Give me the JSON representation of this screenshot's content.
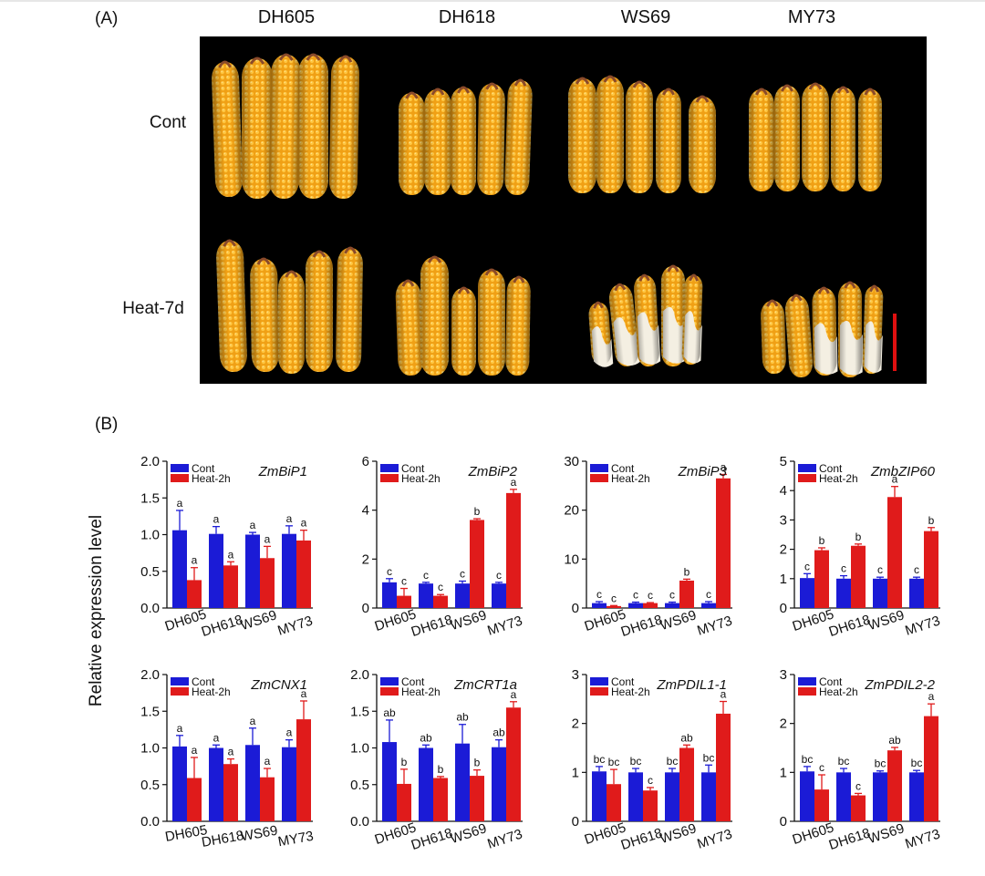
{
  "panel_a": {
    "label": "(A)",
    "columns": [
      "DH605",
      "DH618",
      "WS69",
      "MY73"
    ],
    "rows": [
      "Cont",
      "Heat-7d"
    ],
    "photo_subject": "corn-ears",
    "scale_bar_color": "#e01010"
  },
  "panel_b": {
    "label": "(B)",
    "ylabel": "Relative expression level"
  },
  "colors": {
    "cont": "#1b1bd6",
    "heat": "#e01b1b",
    "kernel": "#f2a51a",
    "kernel_light": "#ffcf4a"
  },
  "chart_data": [
    {
      "type": "bar",
      "title": "ZmBiP1",
      "categories": [
        "DH605",
        "DH618",
        "WS69",
        "MY73"
      ],
      "ylim": [
        0,
        2.0
      ],
      "yticks": [
        "0.0",
        "0.5",
        "1.0",
        "1.5",
        "2.0"
      ],
      "ytick_values": [
        0,
        0.5,
        1.0,
        1.5,
        2.0
      ],
      "tick_rotation": "mixed",
      "legend": [
        "Cont",
        "Heat-2h"
      ],
      "series": [
        {
          "name": "Cont",
          "values": [
            1.06,
            1.01,
            1.0,
            1.01
          ],
          "errors": [
            0.27,
            0.1,
            0.03,
            0.11
          ],
          "letters": [
            "a",
            "a",
            "a",
            "a"
          ]
        },
        {
          "name": "Heat-2h",
          "values": [
            0.38,
            0.58,
            0.68,
            0.92
          ],
          "errors": [
            0.17,
            0.05,
            0.16,
            0.14
          ],
          "letters": [
            "a",
            "a",
            "a",
            "a"
          ]
        }
      ]
    },
    {
      "type": "bar",
      "title": "ZmBiP2",
      "categories": [
        "DH605",
        "DH618",
        "WS69",
        "MY73"
      ],
      "ylim": [
        0,
        6
      ],
      "yticks": [
        "0",
        "2",
        "4",
        "6"
      ],
      "ytick_values": [
        0,
        2,
        4,
        6
      ],
      "tick_rotation": "mixed",
      "legend": [
        "Cont",
        "Heat-2h"
      ],
      "series": [
        {
          "name": "Cont",
          "values": [
            1.05,
            1.0,
            1.0,
            1.0
          ],
          "errors": [
            0.15,
            0.05,
            0.1,
            0.05
          ],
          "letters": [
            "c",
            "c",
            "c",
            "c"
          ]
        },
        {
          "name": "Heat-2h",
          "values": [
            0.5,
            0.5,
            3.6,
            4.7
          ],
          "errors": [
            0.3,
            0.05,
            0.05,
            0.15
          ],
          "letters": [
            "c",
            "c",
            "b",
            "a"
          ]
        }
      ]
    },
    {
      "type": "bar",
      "title": "ZmBiP3",
      "categories": [
        "DH605",
        "DH618",
        "WS69",
        "MY73"
      ],
      "ylim": [
        0,
        30
      ],
      "yticks": [
        "0",
        "10",
        "20",
        "30"
      ],
      "ytick_values": [
        0,
        10,
        20,
        30
      ],
      "tick_rotation": "mixed",
      "legend": [
        "Cont",
        "Heat-2h"
      ],
      "series": [
        {
          "name": "Cont",
          "values": [
            1.0,
            1.0,
            1.0,
            1.0
          ],
          "errors": [
            0.3,
            0.2,
            0.2,
            0.3
          ],
          "letters": [
            "c",
            "c",
            "c",
            "c"
          ]
        },
        {
          "name": "Heat-2h",
          "values": [
            0.4,
            1.0,
            5.6,
            26.5
          ],
          "errors": [
            0.1,
            0.1,
            0.3,
            0.8
          ],
          "letters": [
            "c",
            "c",
            "b",
            "a"
          ]
        }
      ]
    },
    {
      "type": "bar",
      "title": "ZmbZIP60",
      "categories": [
        "DH605",
        "DH618",
        "WS69",
        "MY73"
      ],
      "ylim": [
        0,
        5
      ],
      "yticks": [
        "0",
        "1",
        "2",
        "3",
        "4",
        "5"
      ],
      "ytick_values": [
        0,
        1,
        2,
        3,
        4,
        5
      ],
      "tick_rotation": "mixed",
      "legend": [
        "Cont",
        "Heat-2h"
      ],
      "series": [
        {
          "name": "Cont",
          "values": [
            1.02,
            1.0,
            1.0,
            1.0
          ],
          "errors": [
            0.15,
            0.1,
            0.05,
            0.05
          ],
          "letters": [
            "c",
            "c",
            "c",
            "c"
          ]
        },
        {
          "name": "Heat-2h",
          "values": [
            1.97,
            2.12,
            3.78,
            2.62
          ],
          "errors": [
            0.08,
            0.06,
            0.36,
            0.12
          ],
          "letters": [
            "b",
            "b",
            "a",
            "b"
          ]
        }
      ]
    },
    {
      "type": "bar",
      "title": "ZmCNX1",
      "categories": [
        "DH605",
        "DH618",
        "WS69",
        "MY73"
      ],
      "ylim": [
        0,
        2.0
      ],
      "yticks": [
        "0.0",
        "0.5",
        "1.0",
        "1.5",
        "2.0"
      ],
      "ytick_values": [
        0,
        0.5,
        1.0,
        1.5,
        2.0
      ],
      "tick_rotation": "flat",
      "legend": [
        "Cont",
        "Heat-2h"
      ],
      "series": [
        {
          "name": "Cont",
          "values": [
            1.02,
            1.0,
            1.04,
            1.01
          ],
          "errors": [
            0.15,
            0.04,
            0.23,
            0.1
          ],
          "letters": [
            "a",
            "a",
            "a",
            "a"
          ]
        },
        {
          "name": "Heat-2h",
          "values": [
            0.59,
            0.78,
            0.6,
            1.39
          ],
          "errors": [
            0.28,
            0.07,
            0.12,
            0.25
          ],
          "letters": [
            "a",
            "a",
            "a",
            "a"
          ]
        }
      ]
    },
    {
      "type": "bar",
      "title": "ZmCRT1a",
      "categories": [
        "DH605",
        "DH618",
        "WS69",
        "MY73"
      ],
      "ylim": [
        0,
        2.0
      ],
      "yticks": [
        "0.0",
        "0.5",
        "1.0",
        "1.5",
        "2.0"
      ],
      "ytick_values": [
        0,
        0.5,
        1.0,
        1.5,
        2.0
      ],
      "tick_rotation": "mixed",
      "legend": [
        "Cont",
        "Heat-2h"
      ],
      "series": [
        {
          "name": "Cont",
          "values": [
            1.08,
            1.0,
            1.06,
            1.01
          ],
          "errors": [
            0.3,
            0.04,
            0.26,
            0.1
          ],
          "letters": [
            "ab",
            "ab",
            "ab",
            "ab"
          ]
        },
        {
          "name": "Heat-2h",
          "values": [
            0.51,
            0.59,
            0.62,
            1.55
          ],
          "errors": [
            0.2,
            0.02,
            0.08,
            0.08
          ],
          "letters": [
            "b",
            "b",
            "b",
            "a"
          ]
        }
      ]
    },
    {
      "type": "bar",
      "title": "ZmPDIL1-1",
      "categories": [
        "DH605",
        "DH618",
        "WS69",
        "MY73"
      ],
      "ylim": [
        0,
        3
      ],
      "yticks": [
        "0",
        "1",
        "2",
        "3"
      ],
      "ytick_values": [
        0,
        1,
        2,
        3
      ],
      "tick_rotation": "mixed",
      "legend": [
        "Cont",
        "Heat-2h"
      ],
      "series": [
        {
          "name": "Cont",
          "values": [
            1.02,
            1.0,
            1.0,
            1.0
          ],
          "errors": [
            0.1,
            0.08,
            0.08,
            0.15
          ],
          "letters": [
            "bc",
            "bc",
            "bc",
            "bc"
          ]
        },
        {
          "name": "Heat-2h",
          "values": [
            0.76,
            0.63,
            1.5,
            2.2
          ],
          "errors": [
            0.3,
            0.06,
            0.06,
            0.25
          ],
          "letters": [
            "bc",
            "c",
            "ab",
            "a"
          ]
        }
      ]
    },
    {
      "type": "bar",
      "title": "ZmPDIL2-2",
      "categories": [
        "DH605",
        "DH618",
        "WS69",
        "MY73"
      ],
      "ylim": [
        0,
        3
      ],
      "yticks": [
        "0",
        "1",
        "2",
        "3"
      ],
      "ytick_values": [
        0,
        1,
        2,
        3
      ],
      "tick_rotation": "mixed",
      "legend": [
        "Cont",
        "Heat-2h"
      ],
      "series": [
        {
          "name": "Cont",
          "values": [
            1.02,
            1.0,
            1.0,
            1.0
          ],
          "errors": [
            0.1,
            0.08,
            0.03,
            0.04
          ],
          "letters": [
            "bc",
            "bc",
            "bc",
            "bc"
          ]
        },
        {
          "name": "Heat-2h",
          "values": [
            0.65,
            0.53,
            1.45,
            2.15
          ],
          "errors": [
            0.3,
            0.04,
            0.06,
            0.25
          ],
          "letters": [
            "c",
            "c",
            "ab",
            "a"
          ]
        }
      ]
    }
  ]
}
